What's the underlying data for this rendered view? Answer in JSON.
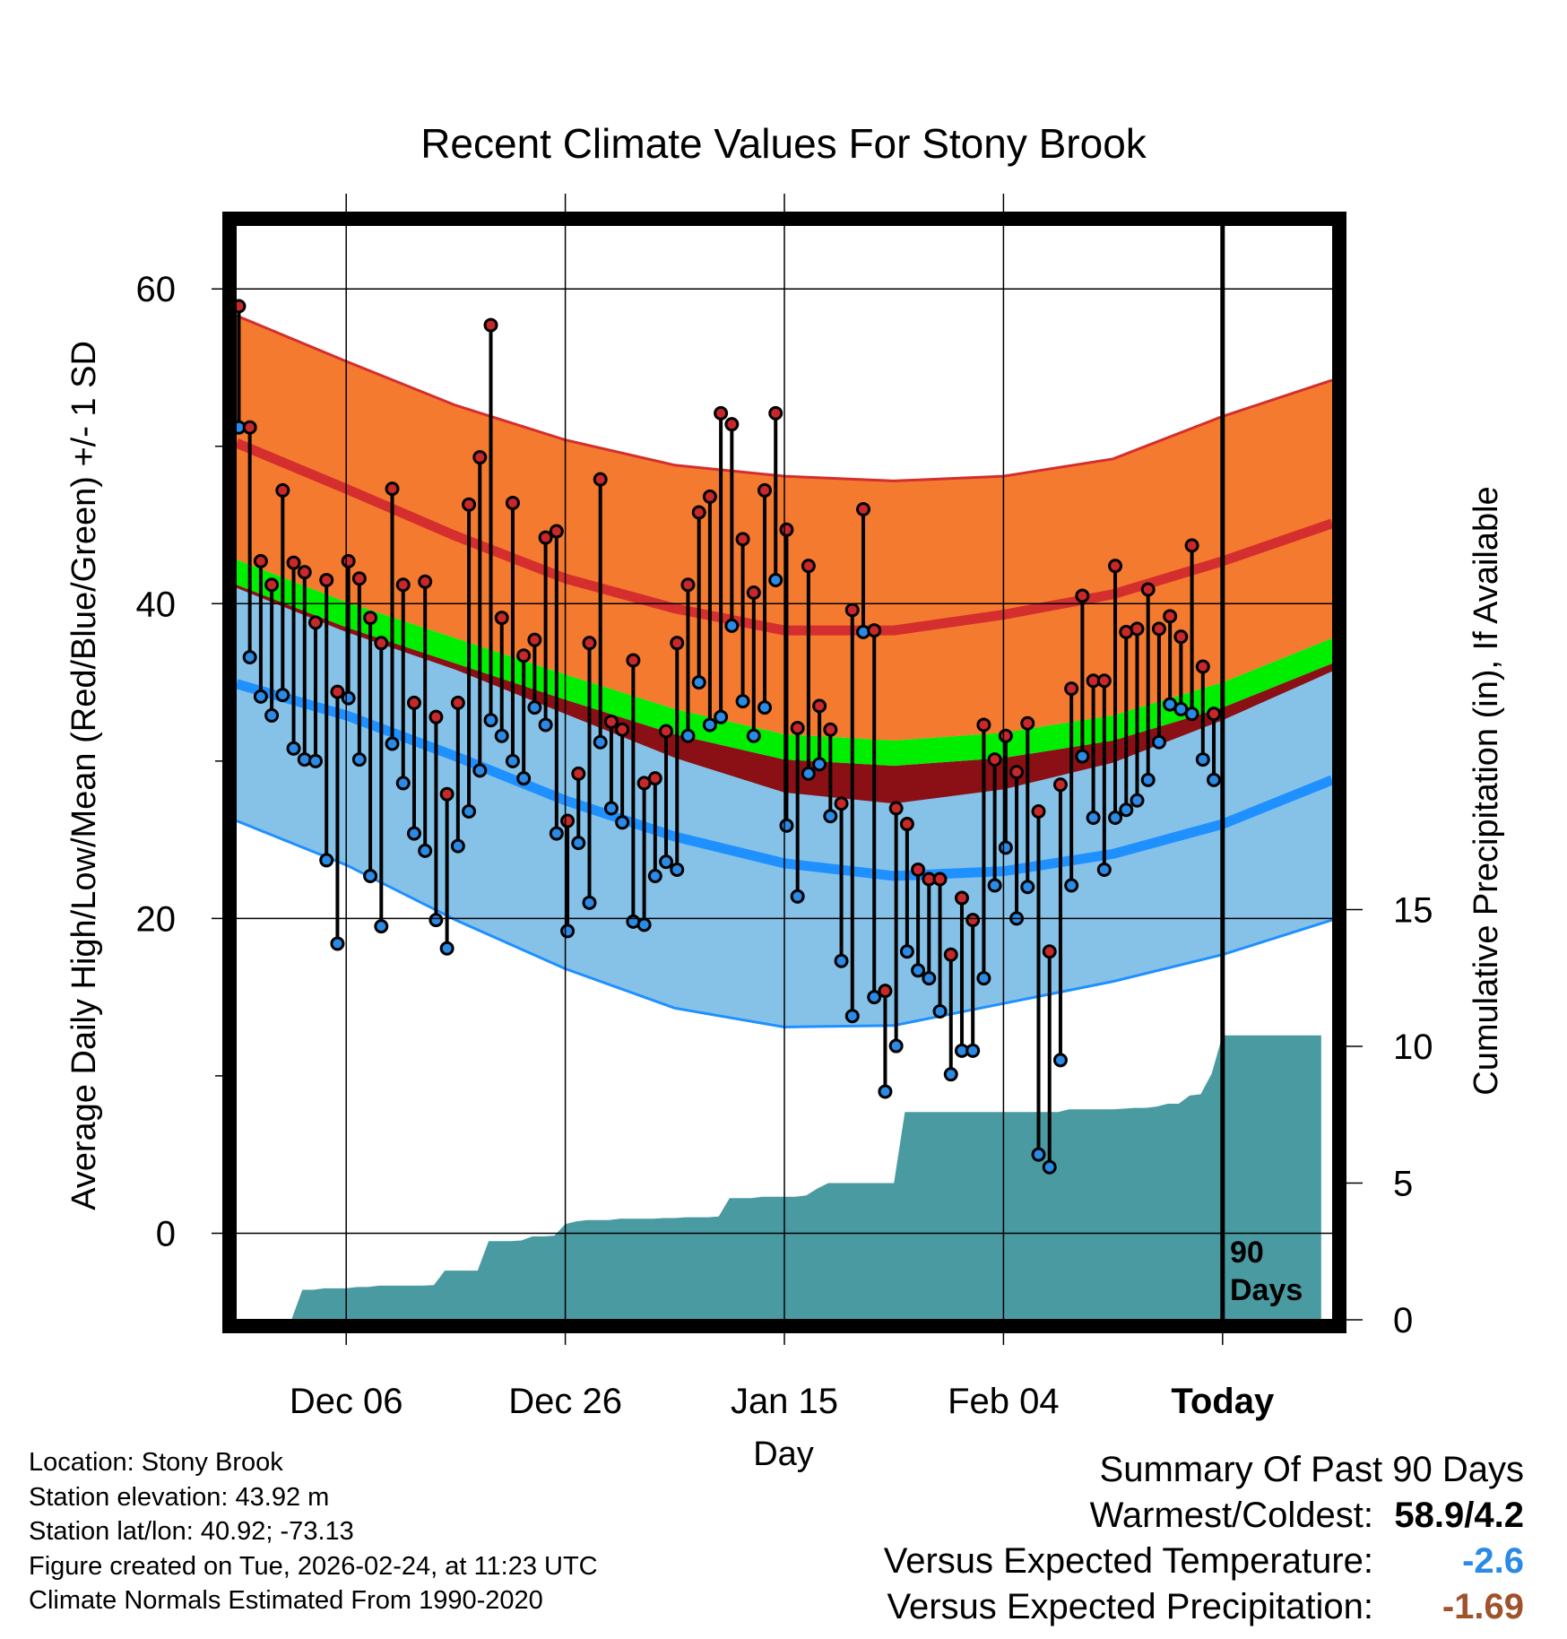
{
  "chart_data": {
    "type": "line",
    "title": "Recent Climate Values For Stony Brook",
    "xlabel": "Day",
    "ylabel": "Average Daily High/Low/Mean (Red/Blue/Green) +/- 1 SD",
    "y2label": "Cumulative Precipitation (in), If Available",
    "xlim": [
      0,
      100
    ],
    "ylim": [
      -5.5,
      64
    ],
    "y2lim": [
      0,
      40
    ],
    "yticks": [
      0,
      20,
      40,
      60
    ],
    "ytick_labels": [
      "0",
      "20",
      "40",
      "60"
    ],
    "y2ticks": [
      0,
      5,
      10,
      15
    ],
    "y2tick_labels": [
      "0",
      "5",
      "10",
      "15"
    ],
    "xticks": [
      10,
      30,
      50,
      70,
      90
    ],
    "xtick_labels": [
      "Dec 06",
      "Dec 26",
      "Jan 15",
      "Feb 04",
      "Today"
    ],
    "today_x": 90,
    "today_label_line1": "90",
    "today_label_line2": "Days",
    "normals": {
      "x": [
        0,
        10,
        20,
        30,
        40,
        50,
        60,
        70,
        80,
        90,
        100
      ],
      "high_mean": [
        50.2,
        47.3,
        44.3,
        41.6,
        39.7,
        38.3,
        38.3,
        39.3,
        40.6,
        42.7,
        45.1
      ],
      "high_upper": [
        58.3,
        55.4,
        52.6,
        50.4,
        48.8,
        48.1,
        47.8,
        48.1,
        49.2,
        51.9,
        54.2
      ],
      "low_mean": [
        34.9,
        32.9,
        30.3,
        27.5,
        25.2,
        23.5,
        22.7,
        23.0,
        24.1,
        26.0,
        28.8
      ],
      "low_lower": [
        26.2,
        23.4,
        19.9,
        16.8,
        14.3,
        13.1,
        13.2,
        14.6,
        16.0,
        17.7,
        19.9
      ],
      "mean": [
        42.0,
        39.3,
        37.0,
        34.7,
        32.5,
        30.9,
        30.5,
        31.0,
        32.1,
        34.2,
        37.0
      ],
      "mean_band_half_width": 0.8
    },
    "series": [
      {
        "name": "High",
        "color": "#c8282a",
        "values": [
          58.9,
          51.2,
          42.7,
          41.2,
          47.2,
          42.6,
          42.0,
          38.8,
          41.5,
          34.4,
          42.7,
          41.6,
          39.1,
          37.5,
          47.3,
          41.2,
          33.7,
          41.4,
          32.8,
          27.9,
          33.7,
          46.3,
          49.3,
          57.7,
          39.1,
          46.4,
          36.7,
          37.7,
          44.2,
          44.6,
          26.2,
          29.2,
          37.5,
          47.9,
          32.5,
          32.0,
          36.4,
          28.6,
          28.9,
          31.9,
          37.5,
          41.2,
          45.8,
          46.8,
          52.1,
          51.4,
          44.1,
          40.7,
          47.2,
          52.1,
          44.7,
          32.1,
          42.4,
          33.5,
          32.0,
          27.3,
          39.6,
          46.0,
          38.3,
          15.4,
          27.0,
          26.0,
          23.1,
          22.5,
          22.5,
          17.7,
          21.3,
          19.9,
          32.3,
          30.1,
          31.6,
          29.3,
          32.4,
          26.8,
          17.9,
          28.5,
          34.6,
          40.5,
          35.1,
          35.1,
          42.4,
          38.2,
          38.4,
          40.9,
          38.4,
          39.2,
          37.9,
          43.7,
          36.0,
          33.0
        ]
      },
      {
        "name": "Low",
        "color": "#2a8ae6",
        "values": [
          51.2,
          36.6,
          34.1,
          32.9,
          34.2,
          30.8,
          30.1,
          30.0,
          23.7,
          18.4,
          34.0,
          30.1,
          22.7,
          19.5,
          31.1,
          28.6,
          25.4,
          24.3,
          19.9,
          18.1,
          24.6,
          26.8,
          29.4,
          32.6,
          31.6,
          30.0,
          28.9,
          33.4,
          32.3,
          25.4,
          19.2,
          24.8,
          21.0,
          31.2,
          27.0,
          26.1,
          19.8,
          19.6,
          22.7,
          23.6,
          23.1,
          31.6,
          35.0,
          32.3,
          32.8,
          38.6,
          33.8,
          31.6,
          33.4,
          41.5,
          25.9,
          21.4,
          29.2,
          29.8,
          26.5,
          17.3,
          13.8,
          38.2,
          15.0,
          9.0,
          11.9,
          17.9,
          16.7,
          16.2,
          14.1,
          10.1,
          11.6,
          11.6,
          16.2,
          22.1,
          24.5,
          20.0,
          22.0,
          5.0,
          4.2,
          11.0,
          22.1,
          30.3,
          26.4,
          23.1,
          26.4,
          26.9,
          27.5,
          28.8,
          31.2,
          33.6,
          33.3,
          33.0,
          30.1,
          28.8
        ]
      }
    ],
    "precip_note": "cumulative precipitation (in), per day",
    "precip": [
      0.0,
      0.0,
      0.0,
      0.0,
      0.0,
      0.0,
      1.1,
      1.1,
      1.15,
      1.15,
      1.15,
      1.2,
      1.2,
      1.25,
      1.25,
      1.25,
      1.25,
      1.25,
      1.27,
      1.8,
      1.8,
      1.8,
      1.8,
      2.88,
      2.88,
      2.88,
      2.9,
      3.05,
      3.05,
      3.08,
      3.5,
      3.6,
      3.65,
      3.65,
      3.65,
      3.7,
      3.7,
      3.7,
      3.7,
      3.72,
      3.72,
      3.75,
      3.75,
      3.75,
      3.78,
      4.45,
      4.45,
      4.45,
      4.5,
      4.5,
      4.5,
      4.5,
      4.55,
      4.8,
      5.0,
      5.0,
      5.0,
      5.0,
      5.0,
      5.0,
      5.0,
      7.6,
      7.6,
      7.6,
      7.6,
      7.6,
      7.6,
      7.6,
      7.6,
      7.6,
      7.6,
      7.6,
      7.6,
      7.6,
      7.6,
      7.6,
      7.7,
      7.7,
      7.7,
      7.7,
      7.7,
      7.72,
      7.75,
      7.75,
      7.8,
      7.9,
      7.9,
      8.2,
      8.25,
      9.0,
      10.4,
      10.4,
      10.4,
      10.4,
      10.4,
      10.4,
      10.4,
      10.4,
      10.4,
      10.4
    ],
    "colors": {
      "high_band": "#f47a30",
      "high_line": "#d42e2e",
      "mean_band": "#00ee00",
      "between_band": "#8b1016",
      "low_band": "#86c2e8",
      "low_line": "#1e90ff",
      "precip_fill": "#4a9aa2"
    }
  },
  "info": {
    "location": "Location: Stony Brook",
    "elevation": "Station elevation: 43.92 m",
    "latlon": "Station lat/lon: 40.92; -73.13",
    "created": "Figure created on Tue, 2026-02-24, at 11:23 UTC",
    "normals": "Climate Normals Estimated From 1990-2020"
  },
  "summary": {
    "heading": "Summary Of Past 90 Days",
    "warmest_label": "Warmest/Coldest:",
    "warmest_value": "58.9/4.2",
    "temp_label": "Versus Expected Temperature:",
    "temp_value": "-2.6",
    "temp_color": "#2a8ae6",
    "precip_label": "Versus Expected Precipitation:",
    "precip_value": "-1.69",
    "precip_color": "#a0522d"
  }
}
